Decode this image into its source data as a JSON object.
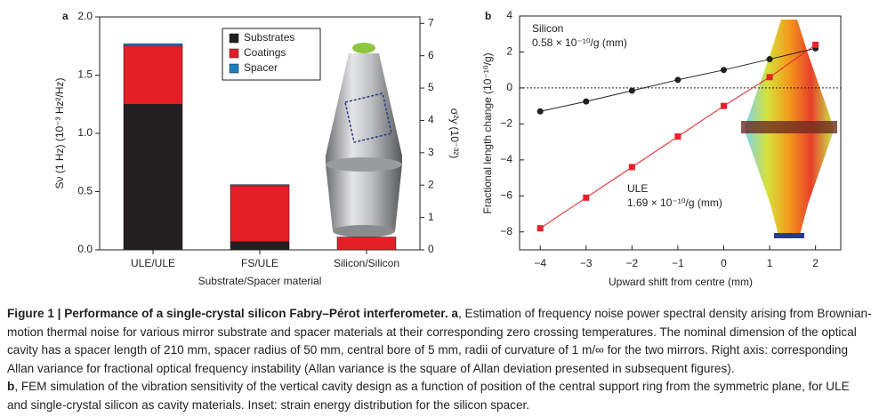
{
  "chart_data": [
    {
      "type": "stacked-bar",
      "panel": "a",
      "categories": [
        "ULE/ULE",
        "FS/ULE",
        "Silicon/Silicon"
      ],
      "series": [
        {
          "name": "Substrates",
          "color": "#231f20",
          "values": [
            1.25,
            0.07,
            0
          ]
        },
        {
          "name": "Coatings",
          "color": "#e31e24",
          "values": [
            0.5,
            0.48,
            0.11
          ]
        },
        {
          "name": "Spacer",
          "color": "#1a7fc1",
          "values": [
            0.02,
            0.01,
            0
          ]
        }
      ],
      "ylabel": "Sν (1 Hz) (10⁻³ Hz²/Hz)",
      "y2label": "σ²y (10⁻³²)",
      "xlabel": "Substrate/Spacer material",
      "ylim": [
        0,
        2.0
      ],
      "yticks": [
        {
          "value": 0,
          "label": "0.0"
        },
        {
          "value": 0.5,
          "label": "0.5"
        },
        {
          "value": 1.0,
          "label": "1.0"
        },
        {
          "value": 1.5,
          "label": "1.5"
        },
        {
          "value": 2.0,
          "label": "2.0"
        }
      ],
      "y2lim": [
        0,
        7.2
      ],
      "y2ticks": [
        0,
        1,
        2,
        3,
        4,
        5,
        6,
        7
      ],
      "legend": "top-center"
    },
    {
      "type": "line",
      "panel": "b",
      "x": [
        -4,
        -3,
        -2,
        -1,
        0,
        1,
        2
      ],
      "series": [
        {
          "name": "Silicon",
          "color": "#231f20",
          "marker": "circle",
          "values": [
            -1.3,
            -0.75,
            -0.15,
            0.45,
            1.0,
            1.6,
            2.2
          ]
        },
        {
          "name": "ULE",
          "color": "#e8202a",
          "marker": "square",
          "values": [
            -7.8,
            -6.1,
            -4.4,
            -2.7,
            -1.0,
            0.6,
            2.4
          ]
        }
      ],
      "annotations": [
        "0.58 × 10⁻¹⁰/g (mm)",
        "1.69 × 10⁻¹⁰/g (mm)"
      ],
      "ylabel": "Fractional length change (10⁻¹⁰/g)",
      "xlabel": "Upward shift from centre (mm)",
      "xlim": [
        -4.45,
        2.55
      ],
      "ylim": [
        -9,
        4
      ],
      "xticks": [
        {
          "value": -4,
          "label": "−4"
        },
        {
          "value": -3,
          "label": "−3"
        },
        {
          "value": -2,
          "label": "−2"
        },
        {
          "value": -1,
          "label": "−1"
        },
        0,
        1,
        2
      ],
      "yticks": [
        {
          "value": -8,
          "label": "−8"
        },
        {
          "value": -6,
          "label": "−6"
        },
        {
          "value": -4,
          "label": "−4"
        },
        {
          "value": -2,
          "label": "−2"
        },
        0,
        2,
        4
      ],
      "hline": 0
    }
  ],
  "caption": {
    "title": "Figure 1 | Performance of a single-crystal silicon Fabry–Pérot interferometer.",
    "a_label": "a",
    "a_text": ", Estimation of frequency noise power spectral density arising from Brownian-motion thermal noise for various mirror substrate and spacer materials at their corresponding zero crossing temperatures. The nominal dimension of the optical cavity has a spacer length of 210 mm, spacer radius of 50 mm, central bore of 5 mm, radii of curvature of 1 m/∞ for the two mirrors. Right axis: corresponding Allan variance for fractional optical frequency instability (Allan variance is the square of Allan deviation presented in subsequent figures).",
    "b_label": "b",
    "b_text": ", FEM simulation of the vibration sensitivity of the vertical cavity design as a function of position of the central support ring from the symmetric plane, for ULE and single-crystal silicon as cavity materials. Inset: strain energy distribution for the silicon spacer."
  }
}
